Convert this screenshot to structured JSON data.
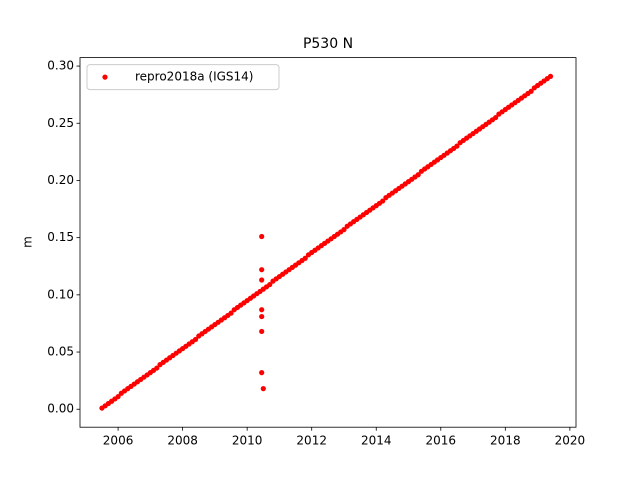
{
  "chart_data": {
    "type": "scatter",
    "title": "P530 N",
    "y_label": "m",
    "legend": "upper left",
    "color": "#ff0000",
    "series": [
      {
        "name": "repro2018a (IGS14)",
        "color": "#ff0000",
        "x": [
          2005.5,
          2005.6,
          2005.7,
          2005.8,
          2005.9,
          2006.0,
          2006.1,
          2006.2,
          2006.3,
          2006.4,
          2006.5,
          2006.6,
          2006.7,
          2006.8,
          2006.9,
          2007.0,
          2007.1,
          2007.2,
          2007.3,
          2007.4,
          2007.5,
          2007.6,
          2007.7,
          2007.8,
          2007.9,
          2008.0,
          2008.1,
          2008.2,
          2008.3,
          2008.4,
          2008.5,
          2008.6,
          2008.7,
          2008.8,
          2008.9,
          2009.0,
          2009.1,
          2009.2,
          2009.3,
          2009.4,
          2009.5,
          2009.6,
          2009.7,
          2009.8,
          2009.9,
          2010.0,
          2010.1,
          2010.2,
          2010.3,
          2010.4,
          2010.5,
          2010.6,
          2010.7,
          2010.8,
          2010.9,
          2011.0,
          2011.1,
          2011.2,
          2011.3,
          2011.4,
          2011.5,
          2011.6,
          2011.7,
          2011.8,
          2011.9,
          2012.0,
          2012.1,
          2012.2,
          2012.3,
          2012.4,
          2012.5,
          2012.6,
          2012.7,
          2012.8,
          2012.9,
          2013.0,
          2013.1,
          2013.2,
          2013.3,
          2013.4,
          2013.5,
          2013.6,
          2013.7,
          2013.8,
          2013.9,
          2014.0,
          2014.1,
          2014.2,
          2014.3,
          2014.4,
          2014.5,
          2014.6,
          2014.7,
          2014.8,
          2014.9,
          2015.0,
          2015.1,
          2015.2,
          2015.3,
          2015.4,
          2015.5,
          2015.6,
          2015.7,
          2015.8,
          2015.9,
          2016.0,
          2016.1,
          2016.2,
          2016.3,
          2016.4,
          2016.5,
          2016.6,
          2016.7,
          2016.8,
          2016.9,
          2017.0,
          2017.1,
          2017.2,
          2017.3,
          2017.4,
          2017.5,
          2017.6,
          2017.7,
          2017.8,
          2017.9,
          2018.0,
          2018.1,
          2018.2,
          2018.3,
          2018.4,
          2018.5,
          2018.6,
          2018.7,
          2018.8,
          2018.9,
          2019.0,
          2019.1,
          2019.2,
          2019.3,
          2019.4,
          2010.45,
          2010.45,
          2010.45,
          2010.45,
          2010.45,
          2010.45,
          2010.45,
          2010.5
        ],
        "values": [
          0.001,
          0.003,
          0.005,
          0.007,
          0.009,
          0.011,
          0.014,
          0.016,
          0.018,
          0.02,
          0.022,
          0.024,
          0.026,
          0.028,
          0.03,
          0.032,
          0.034,
          0.036,
          0.039,
          0.041,
          0.043,
          0.045,
          0.047,
          0.049,
          0.051,
          0.053,
          0.055,
          0.057,
          0.059,
          0.061,
          0.064,
          0.066,
          0.068,
          0.07,
          0.072,
          0.074,
          0.076,
          0.078,
          0.08,
          0.082,
          0.084,
          0.087,
          0.089,
          0.091,
          0.093,
          0.095,
          0.097,
          0.099,
          0.101,
          0.103,
          0.105,
          0.107,
          0.109,
          0.112,
          0.114,
          0.116,
          0.118,
          0.12,
          0.122,
          0.124,
          0.126,
          0.128,
          0.13,
          0.132,
          0.135,
          0.137,
          0.139,
          0.141,
          0.143,
          0.145,
          0.147,
          0.149,
          0.151,
          0.153,
          0.155,
          0.157,
          0.16,
          0.162,
          0.164,
          0.166,
          0.168,
          0.17,
          0.172,
          0.174,
          0.176,
          0.178,
          0.18,
          0.182,
          0.185,
          0.187,
          0.189,
          0.191,
          0.193,
          0.195,
          0.197,
          0.199,
          0.201,
          0.203,
          0.205,
          0.208,
          0.21,
          0.212,
          0.214,
          0.216,
          0.218,
          0.22,
          0.222,
          0.224,
          0.226,
          0.228,
          0.23,
          0.233,
          0.235,
          0.237,
          0.239,
          0.241,
          0.243,
          0.245,
          0.247,
          0.249,
          0.251,
          0.253,
          0.255,
          0.258,
          0.26,
          0.262,
          0.264,
          0.266,
          0.268,
          0.27,
          0.272,
          0.274,
          0.276,
          0.278,
          0.281,
          0.283,
          0.285,
          0.287,
          0.289,
          0.291,
          0.151,
          0.122,
          0.113,
          0.087,
          0.081,
          0.068,
          0.032,
          0.018
        ]
      }
    ],
    "xlim": [
      2004.82,
      2020.19
    ],
    "xticks": [
      2006,
      2008,
      2010,
      2012,
      2014,
      2016,
      2018,
      2020
    ],
    "ylim": [
      -0.0157,
      0.3074
    ],
    "yticks": [
      {
        "value": 0,
        "label": "0.00"
      },
      {
        "value": 0.05,
        "label": "0.05"
      },
      {
        "value": 0.1,
        "label": "0.10"
      },
      {
        "value": 0.15,
        "label": "0.15"
      },
      {
        "value": 0.2,
        "label": "0.20"
      },
      {
        "value": 0.25,
        "label": "0.25"
      },
      {
        "value": 0.3,
        "label": "0.30"
      }
    ]
  }
}
